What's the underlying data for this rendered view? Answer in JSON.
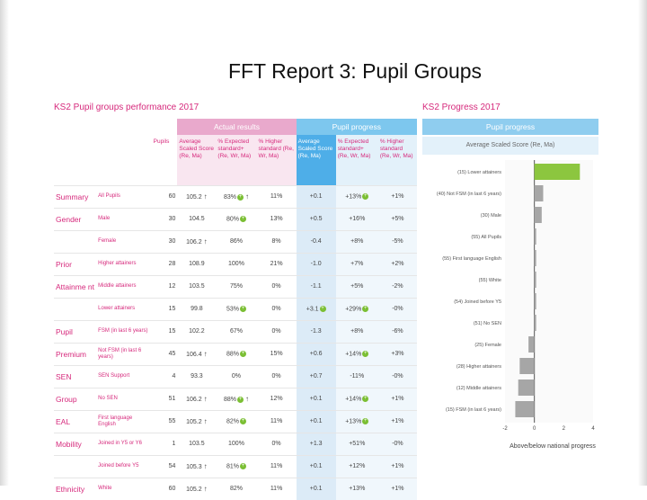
{
  "slide": {
    "title": "FFT Report 3: Pupil Groups"
  },
  "left": {
    "title": "KS2 Pupil groups performance 2017",
    "band_actual": "Actual results",
    "band_progress": "Pupil progress",
    "headers": {
      "pupils": "Pupils",
      "avg": "Average Scaled Score (Re, Ma)",
      "exp": "% Expected standard+ (Re, Wr, Ma)",
      "high": "% Higher standard (Re, Wr, Ma)",
      "p_avg": "Average Scaled Score (Re, Ma)",
      "p_exp": "% Expected standard+ (Re, Wr, Ma)",
      "p_high": "% Higher standard (Re, Wr, Ma)"
    },
    "rows": [
      {
        "group": "Summary",
        "sub": "All Pupils",
        "pupils": "60",
        "avg": "105.2",
        "avg_arrow": "↑",
        "exp": "83%",
        "exp_mark": "+",
        "exp_arrow": "↑",
        "high": "11%",
        "p_avg": "+0.1",
        "p_exp": "+13%",
        "p_exp_mark": "+",
        "p_high": "+1%"
      },
      {
        "group": "Gender",
        "sub": "Male",
        "pupils": "30",
        "avg": "104.5",
        "avg_arrow": "",
        "exp": "80%",
        "exp_mark": "+",
        "exp_arrow": "",
        "high": "13%",
        "p_avg": "+0.5",
        "p_exp": "+16%",
        "p_exp_mark": "",
        "p_high": "+5%"
      },
      {
        "group": "",
        "sub": "Female",
        "pupils": "30",
        "avg": "106.2",
        "avg_arrow": "↑",
        "exp": "86%",
        "exp_mark": "",
        "exp_arrow": "",
        "high": "8%",
        "p_avg": "-0.4",
        "p_exp": "+8%",
        "p_exp_mark": "",
        "p_high": "-5%"
      },
      {
        "group": "Prior",
        "sub": "Higher attainers",
        "pupils": "28",
        "avg": "108.9",
        "avg_arrow": "",
        "exp": "100%",
        "exp_mark": "",
        "exp_arrow": "",
        "high": "21%",
        "p_avg": "-1.0",
        "p_exp": "+7%",
        "p_exp_mark": "",
        "p_high": "+2%"
      },
      {
        "group": "Attainme nt",
        "sub": "Middle attainers",
        "pupils": "12",
        "avg": "103.5",
        "avg_arrow": "",
        "exp": "75%",
        "exp_mark": "",
        "exp_arrow": "",
        "high": "0%",
        "p_avg": "-1.1",
        "p_exp": "+5%",
        "p_exp_mark": "",
        "p_high": "-2%"
      },
      {
        "group": "",
        "sub": "Lower attainers",
        "pupils": "15",
        "avg": "99.8",
        "avg_arrow": "",
        "exp": "53%",
        "exp_mark": "+",
        "exp_arrow": "",
        "high": "0%",
        "p_avg": "+3.1",
        "p_avg_mark": "+",
        "p_exp": "+29%",
        "p_exp_mark": "+",
        "p_high": "-0%"
      },
      {
        "group": "Pupil",
        "sub": "FSM (in last 6 years)",
        "pupils": "15",
        "avg": "102.2",
        "avg_arrow": "",
        "exp": "67%",
        "exp_mark": "",
        "exp_arrow": "",
        "high": "0%",
        "p_avg": "-1.3",
        "p_exp": "+8%",
        "p_exp_mark": "",
        "p_high": "-6%"
      },
      {
        "group": "Premium",
        "sub": "Not FSM (in last 6 years)",
        "pupils": "45",
        "avg": "106.4",
        "avg_arrow": "↑",
        "exp": "88%",
        "exp_mark": "+",
        "exp_arrow": "",
        "high": "15%",
        "p_avg": "+0.6",
        "p_exp": "+14%",
        "p_exp_mark": "+",
        "p_high": "+3%"
      },
      {
        "group": "SEN",
        "sub": "SEN Support",
        "pupils": "4",
        "avg": "93.3",
        "avg_arrow": "",
        "exp": "0%",
        "exp_mark": "",
        "exp_arrow": "",
        "high": "0%",
        "p_avg": "+0.7",
        "p_exp": "-11%",
        "p_exp_mark": "",
        "p_high": "-0%"
      },
      {
        "group": "Group",
        "sub": "No SEN",
        "pupils": "51",
        "avg": "106.2",
        "avg_arrow": "↑",
        "exp": "88%",
        "exp_mark": "+",
        "exp_arrow": "↑",
        "high": "12%",
        "p_avg": "+0.1",
        "p_exp": "+14%",
        "p_exp_mark": "+",
        "p_high": "+1%"
      },
      {
        "group": "EAL",
        "sub": "First language English",
        "pupils": "55",
        "avg": "105.2",
        "avg_arrow": "↑",
        "exp": "82%",
        "exp_mark": "+",
        "exp_arrow": "",
        "high": "11%",
        "p_avg": "+0.1",
        "p_exp": "+13%",
        "p_exp_mark": "+",
        "p_high": "+1%"
      },
      {
        "group": "Mobility",
        "sub": "Joined in Y5 or Y6",
        "pupils": "1",
        "avg": "103.5",
        "avg_arrow": "",
        "exp": "100%",
        "exp_mark": "",
        "exp_arrow": "",
        "high": "0%",
        "p_avg": "+1.3",
        "p_exp": "+51%",
        "p_exp_mark": "",
        "p_high": "-0%"
      },
      {
        "group": "",
        "sub": "Joined before Y5",
        "pupils": "54",
        "avg": "105.3",
        "avg_arrow": "↑",
        "exp": "81%",
        "exp_mark": "+",
        "exp_arrow": "",
        "high": "11%",
        "p_avg": "+0.1",
        "p_exp": "+12%",
        "p_exp_mark": "",
        "p_high": "+1%"
      },
      {
        "group": "Ethnicity",
        "sub": "White",
        "pupils": "60",
        "avg": "105.2",
        "avg_arrow": "↑",
        "exp": "82%",
        "exp_mark": "",
        "exp_arrow": "",
        "high": "11%",
        "p_avg": "+0.1",
        "p_exp": "+13%",
        "p_exp_mark": "",
        "p_high": "+1%"
      }
    ]
  },
  "right": {
    "title": "KS2 Progress 2017",
    "band": "Pupil progress",
    "subtitle": "Average Scaled Score (Re, Ma)",
    "x_caption": "Above/below national progress"
  },
  "chart_data": {
    "type": "bar",
    "orientation": "horizontal",
    "categories": [
      "(15) Lower attainers",
      "(40) Not FSM (in last 6 years)",
      "(30) Male",
      "(55) All Pupils",
      "(55) First language English",
      "(55) White",
      "(54) Joined before Y5",
      "(51) No SEN",
      "(25) Female",
      "(28) Higher attainers",
      "(12) Middle attainers",
      "(15) FSM (in last 6 years)"
    ],
    "values": [
      3.1,
      0.6,
      0.5,
      0.1,
      0.1,
      0.1,
      0.1,
      0.1,
      -0.4,
      -1.0,
      -1.1,
      -1.3
    ],
    "highlight_color": "#8cc63f",
    "bar_color": "#a6a6a6",
    "x_ticks": [
      "-2",
      "0",
      "2",
      "4"
    ],
    "xlim": [
      -2,
      4
    ],
    "xlabel": "Above/below national progress"
  }
}
